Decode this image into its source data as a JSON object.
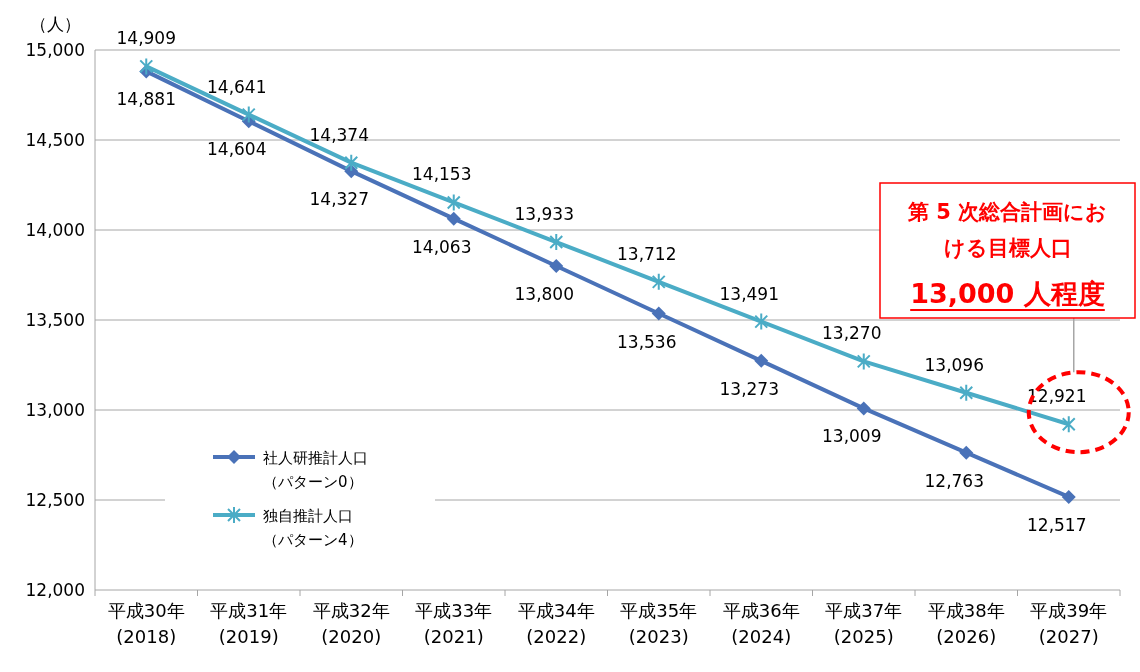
{
  "chart_data": {
    "type": "line",
    "ylabel": "（人）",
    "categories": [
      "平成30年\n(2018)",
      "平成31年\n(2019)",
      "平成32年\n(2020)",
      "平成33年\n(2021)",
      "平成34年\n(2022)",
      "平成35年\n(2023)",
      "平成36年\n(2024)",
      "平成37年\n(2025)",
      "平成38年\n(2026)",
      "平成39年\n(2027)"
    ],
    "series": [
      {
        "name": "社人研推計人口（パターン0）",
        "color": "#4a72b8",
        "marker": "diamond",
        "values": [
          14881,
          14604,
          14327,
          14063,
          13800,
          13536,
          13273,
          13009,
          12763,
          12517
        ],
        "value_labels": [
          "14,881",
          "14,604",
          "14,327",
          "14,063",
          "13,800",
          "13,536",
          "13,273",
          "13,009",
          "12,763",
          "12,517"
        ]
      },
      {
        "name": "独自推計人口（パターン4）",
        "color": "#4bacc6",
        "marker": "cross",
        "values": [
          14909,
          14641,
          14374,
          14153,
          13933,
          13712,
          13491,
          13270,
          13096,
          12921
        ],
        "value_labels": [
          "14,909",
          "14,641",
          "14,374",
          "14,153",
          "13,933",
          "13,712",
          "13,491",
          "13,270",
          "13,096",
          "12,921"
        ]
      }
    ],
    "ylim": [
      12000,
      15000
    ],
    "yticks": [
      {
        "value": 12000,
        "label": "12,000"
      },
      {
        "value": 12500,
        "label": "12,500"
      },
      {
        "value": 13000,
        "label": "13,000"
      },
      {
        "value": 13500,
        "label": "13,500"
      },
      {
        "value": 14000,
        "label": "14,000"
      },
      {
        "value": 14500,
        "label": "14,500"
      },
      {
        "value": 15000,
        "label": "15,000"
      }
    ],
    "grid": "y",
    "legend": "bottom left",
    "line_style": "solid",
    "annotations": [
      "第 5 次総合計画における目標人口",
      "13,000 人程度"
    ]
  }
}
